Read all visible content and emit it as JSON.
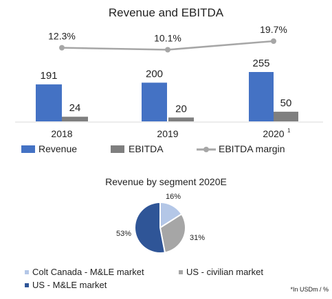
{
  "chart_data": [
    {
      "type": "bar",
      "title": "Revenue and EBITDA",
      "categories": [
        "2018",
        "2019",
        "2020"
      ],
      "category_superscripts": [
        "",
        "",
        "1"
      ],
      "series": [
        {
          "name": "Revenue",
          "values": [
            191,
            200,
            255
          ],
          "color": "#4472c4"
        },
        {
          "name": "EBITDA",
          "values": [
            24,
            20,
            50
          ],
          "color": "#7f7f7f"
        }
      ],
      "line_series": {
        "name": "EBITDA margin",
        "values": [
          12.3,
          10.1,
          19.7
        ],
        "labels": [
          "12.3%",
          "10.1%",
          "19.7%"
        ],
        "color": "#a6a6a6"
      },
      "legend": "bottom"
    },
    {
      "type": "pie",
      "title": "Revenue by segment 2020E",
      "slices": [
        {
          "name": "Colt Canada - M&LE market",
          "value": 16,
          "label": "16%",
          "color": "#b4c7e7"
        },
        {
          "name": "US - civilian market",
          "value": 31,
          "label": "31%",
          "color": "#a6a6a6"
        },
        {
          "name": "US - M&LE market",
          "value": 53,
          "label": "53%",
          "color": "#2f5597"
        }
      ],
      "legend": "bottom-left"
    }
  ],
  "footnote": "*In USDm / %"
}
